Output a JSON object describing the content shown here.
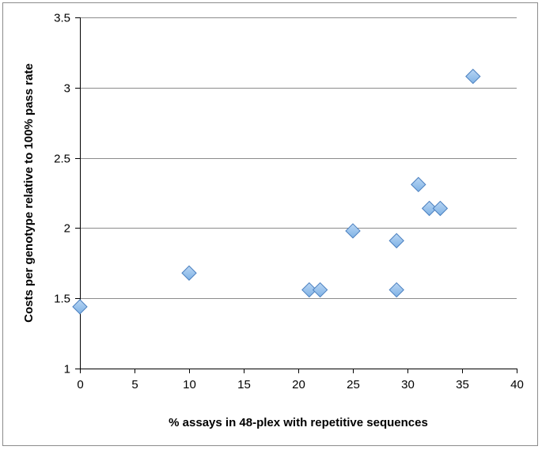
{
  "chart_data": {
    "type": "scatter",
    "title": "",
    "xlabel": "% assays in 48-plex with repetitive sequences",
    "ylabel": "Costs per genotype relative to 100% pass rate",
    "xlim": [
      0,
      40
    ],
    "ylim": [
      1,
      3.5
    ],
    "xticks": [
      0,
      5,
      10,
      15,
      20,
      25,
      30,
      35,
      40
    ],
    "yticks": [
      1,
      1.5,
      2,
      2.5,
      3,
      3.5
    ],
    "ytick_labels": [
      "1",
      "1.5",
      "2",
      "2.5",
      "3",
      "3.5"
    ],
    "grid": "horizontal",
    "legend": "none",
    "marker": "diamond",
    "colors": {
      "marker_fill": "#7fb2e5",
      "marker_stroke": "#4a7fbf",
      "gridline": "#8c8c8c",
      "axis": "#000000"
    },
    "series": [
      {
        "x": [
          0,
          10,
          21,
          22,
          25,
          29,
          29,
          31,
          32,
          33,
          36
        ],
        "y": [
          1.44,
          1.68,
          1.56,
          1.56,
          1.98,
          1.56,
          1.91,
          2.31,
          2.14,
          2.14,
          3.08
        ]
      }
    ]
  }
}
